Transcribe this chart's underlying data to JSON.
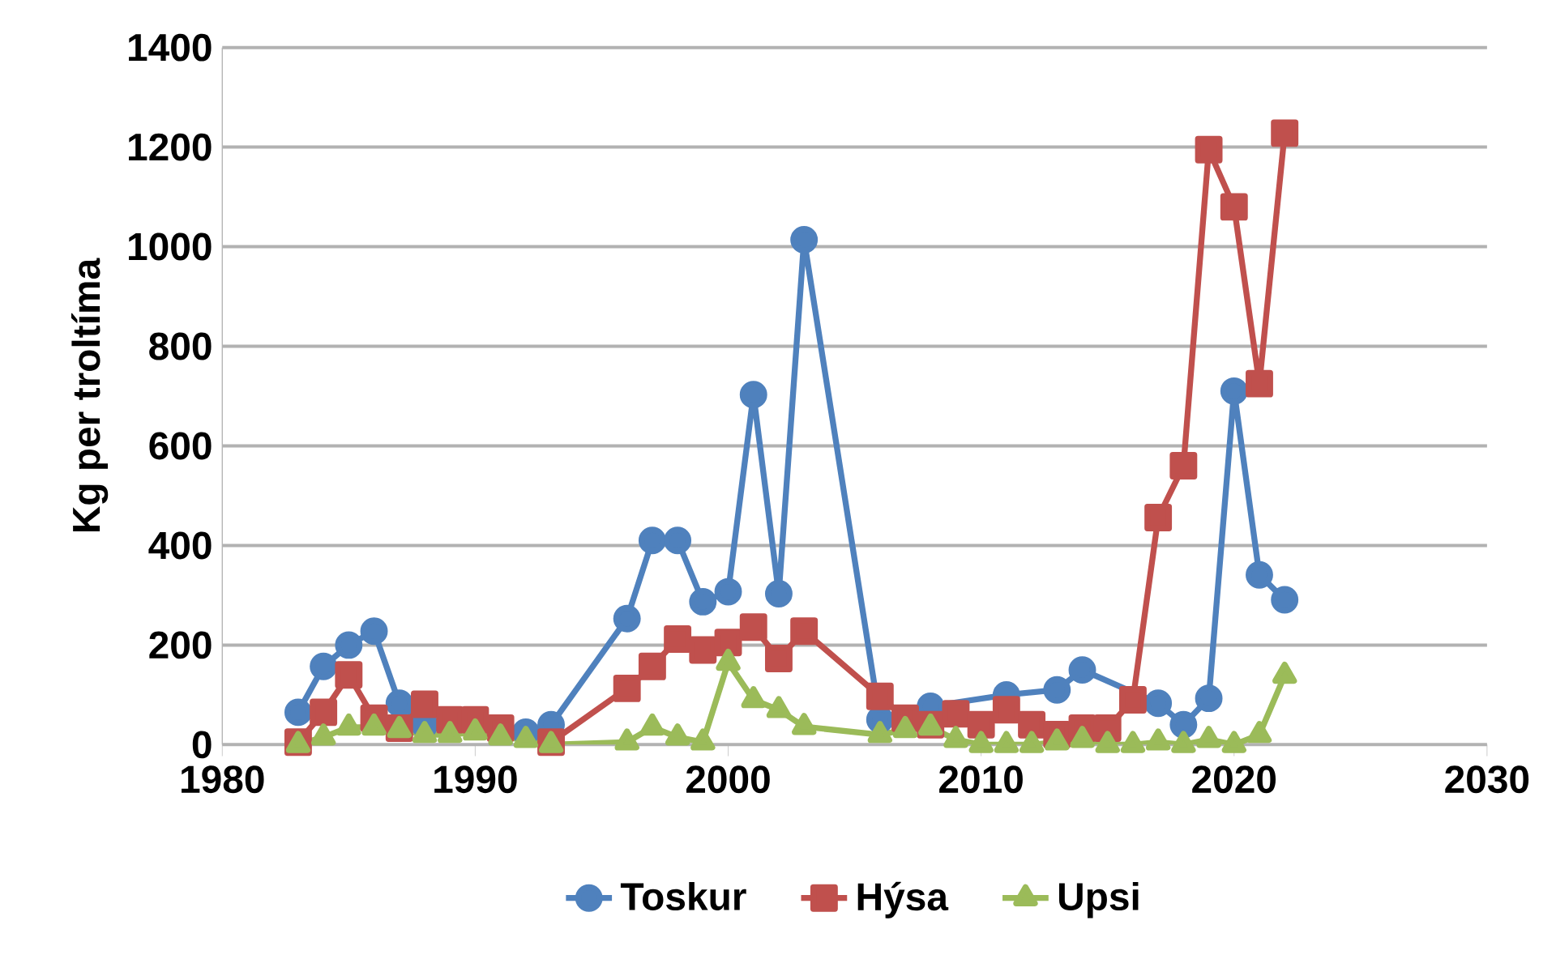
{
  "chart_data": {
    "type": "line",
    "ylabel": "Kg per troltíma",
    "xlim": [
      1980,
      2030
    ],
    "ylim": [
      0,
      1400
    ],
    "xticks": [
      1980,
      1990,
      2000,
      2010,
      2020,
      2030
    ],
    "yticks": [
      0,
      200,
      400,
      600,
      800,
      1000,
      1200,
      1400
    ],
    "grid": "y",
    "legend": "bottom",
    "x": [
      1983,
      1984,
      1985,
      1986,
      1987,
      1988,
      1989,
      1990,
      1991,
      1992,
      1993,
      1996,
      1997,
      1998,
      1999,
      2000,
      2001,
      2002,
      2003,
      2006,
      2007,
      2008,
      2009,
      2010,
      2011,
      2012,
      2013,
      2014,
      2015,
      2016,
      2017,
      2018,
      2019,
      2020,
      2021,
      2022
    ],
    "series": [
      {
        "name": "Toskur",
        "color": "#4f81bd",
        "marker": "circle",
        "values": [
          65,
          157,
          200,
          228,
          83,
          40,
          null,
          null,
          null,
          25,
          40,
          253,
          410,
          410,
          287,
          307,
          703,
          303,
          1014,
          50,
          null,
          77,
          null,
          null,
          100,
          null,
          110,
          150,
          null,
          null,
          83,
          40,
          93,
          710,
          341,
          291
        ]
      },
      {
        "name": "Hýsa",
        "color": "#c0504d",
        "marker": "square",
        "values": [
          5,
          65,
          140,
          53,
          33,
          81,
          50,
          50,
          33,
          null,
          5,
          113,
          157,
          212,
          190,
          205,
          236,
          173,
          228,
          97,
          53,
          40,
          62,
          40,
          70,
          40,
          20,
          33,
          33,
          90,
          456,
          560,
          1195,
          1080,
          725,
          1228
        ]
      },
      {
        "name": "Upsi",
        "color": "#9bbb59",
        "marker": "triangle",
        "values": [
          0,
          15,
          35,
          35,
          30,
          20,
          20,
          25,
          15,
          10,
          0,
          5,
          35,
          15,
          5,
          165,
          90,
          70,
          36,
          20,
          30,
          35,
          10,
          0,
          0,
          0,
          5,
          10,
          0,
          0,
          5,
          0,
          10,
          0,
          20,
          139
        ]
      }
    ]
  }
}
